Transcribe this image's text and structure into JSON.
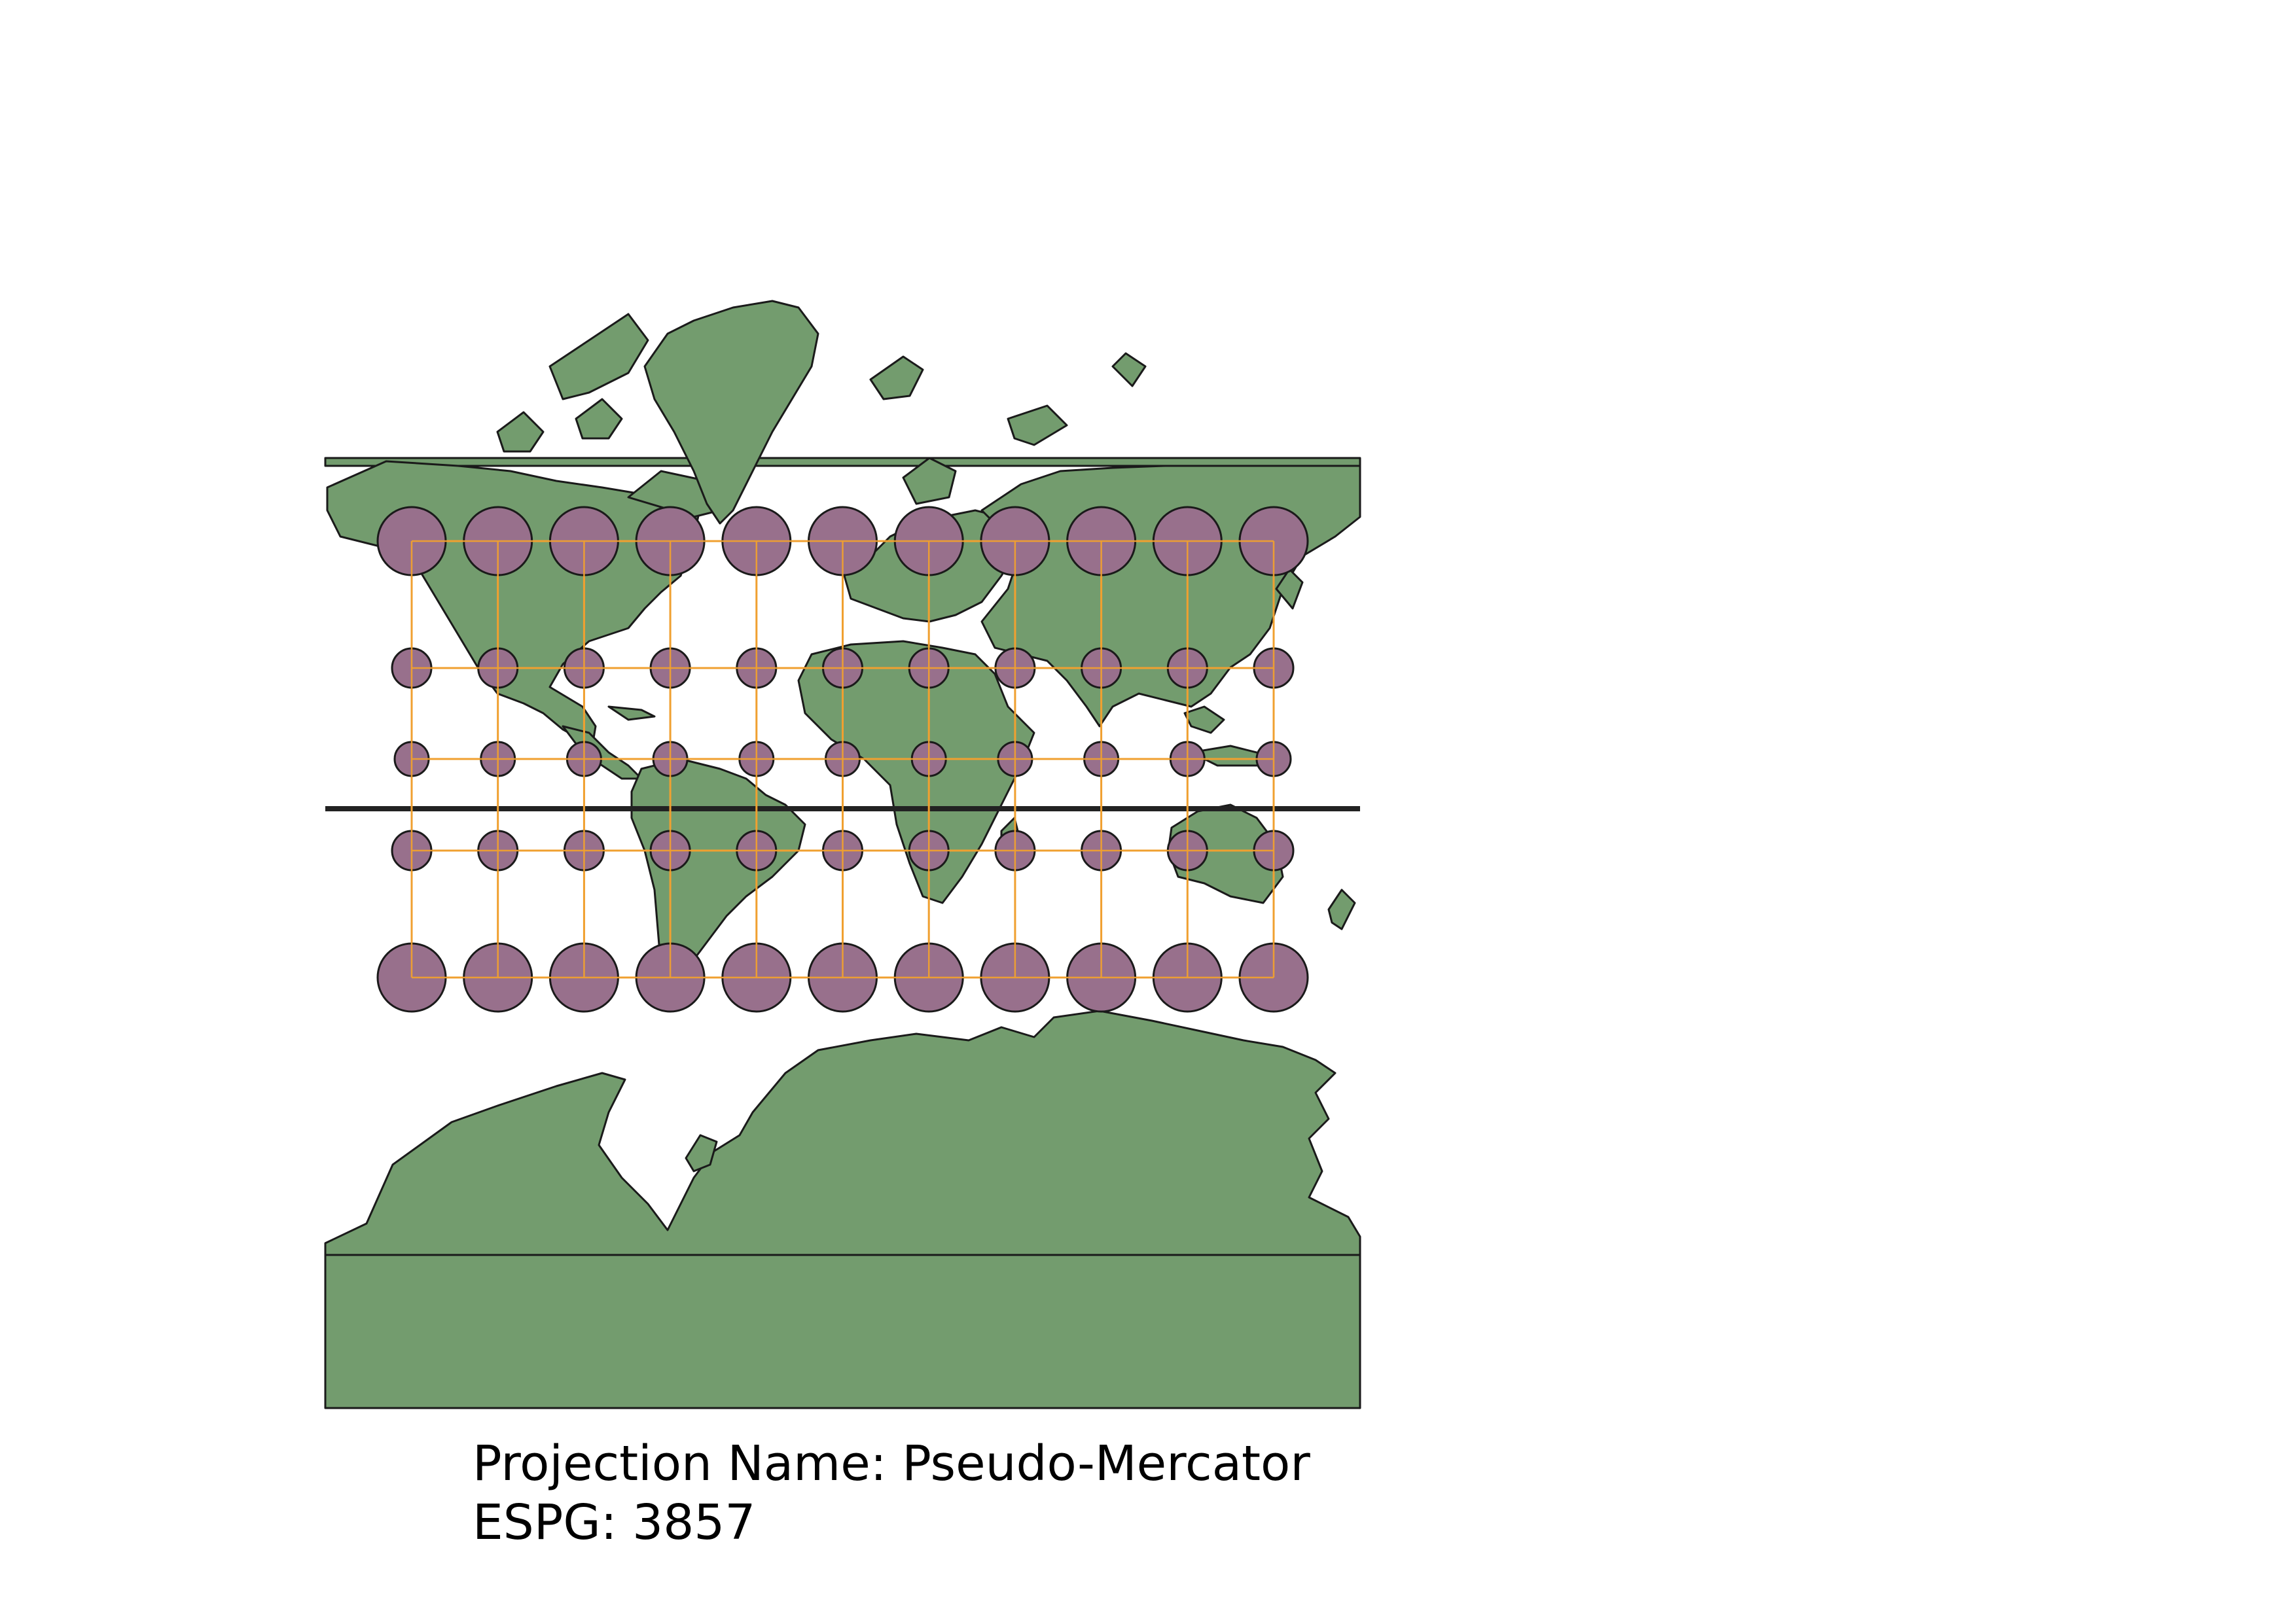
{
  "map": {
    "projection_label": "Projection Name: Pseudo-Mercator",
    "epsg_label": "ESPG: 3857",
    "colors": {
      "land": "#739c6e",
      "land_outline": "#1a1a1a",
      "indicatrix_fill": "#98708c",
      "indicatrix_outline": "#1a1a1a",
      "graticule": "#f0a030",
      "background": "#ffffff"
    },
    "indicatrix": {
      "columns": 11,
      "rows": [
        {
          "latitude_band": "high-north",
          "relative_size": "large"
        },
        {
          "latitude_band": "mid-north",
          "relative_size": "small"
        },
        {
          "latitude_band": "low-north",
          "relative_size": "smallest"
        },
        {
          "latitude_band": "low-south",
          "relative_size": "small"
        },
        {
          "latitude_band": "high-south",
          "relative_size": "large"
        }
      ]
    }
  }
}
